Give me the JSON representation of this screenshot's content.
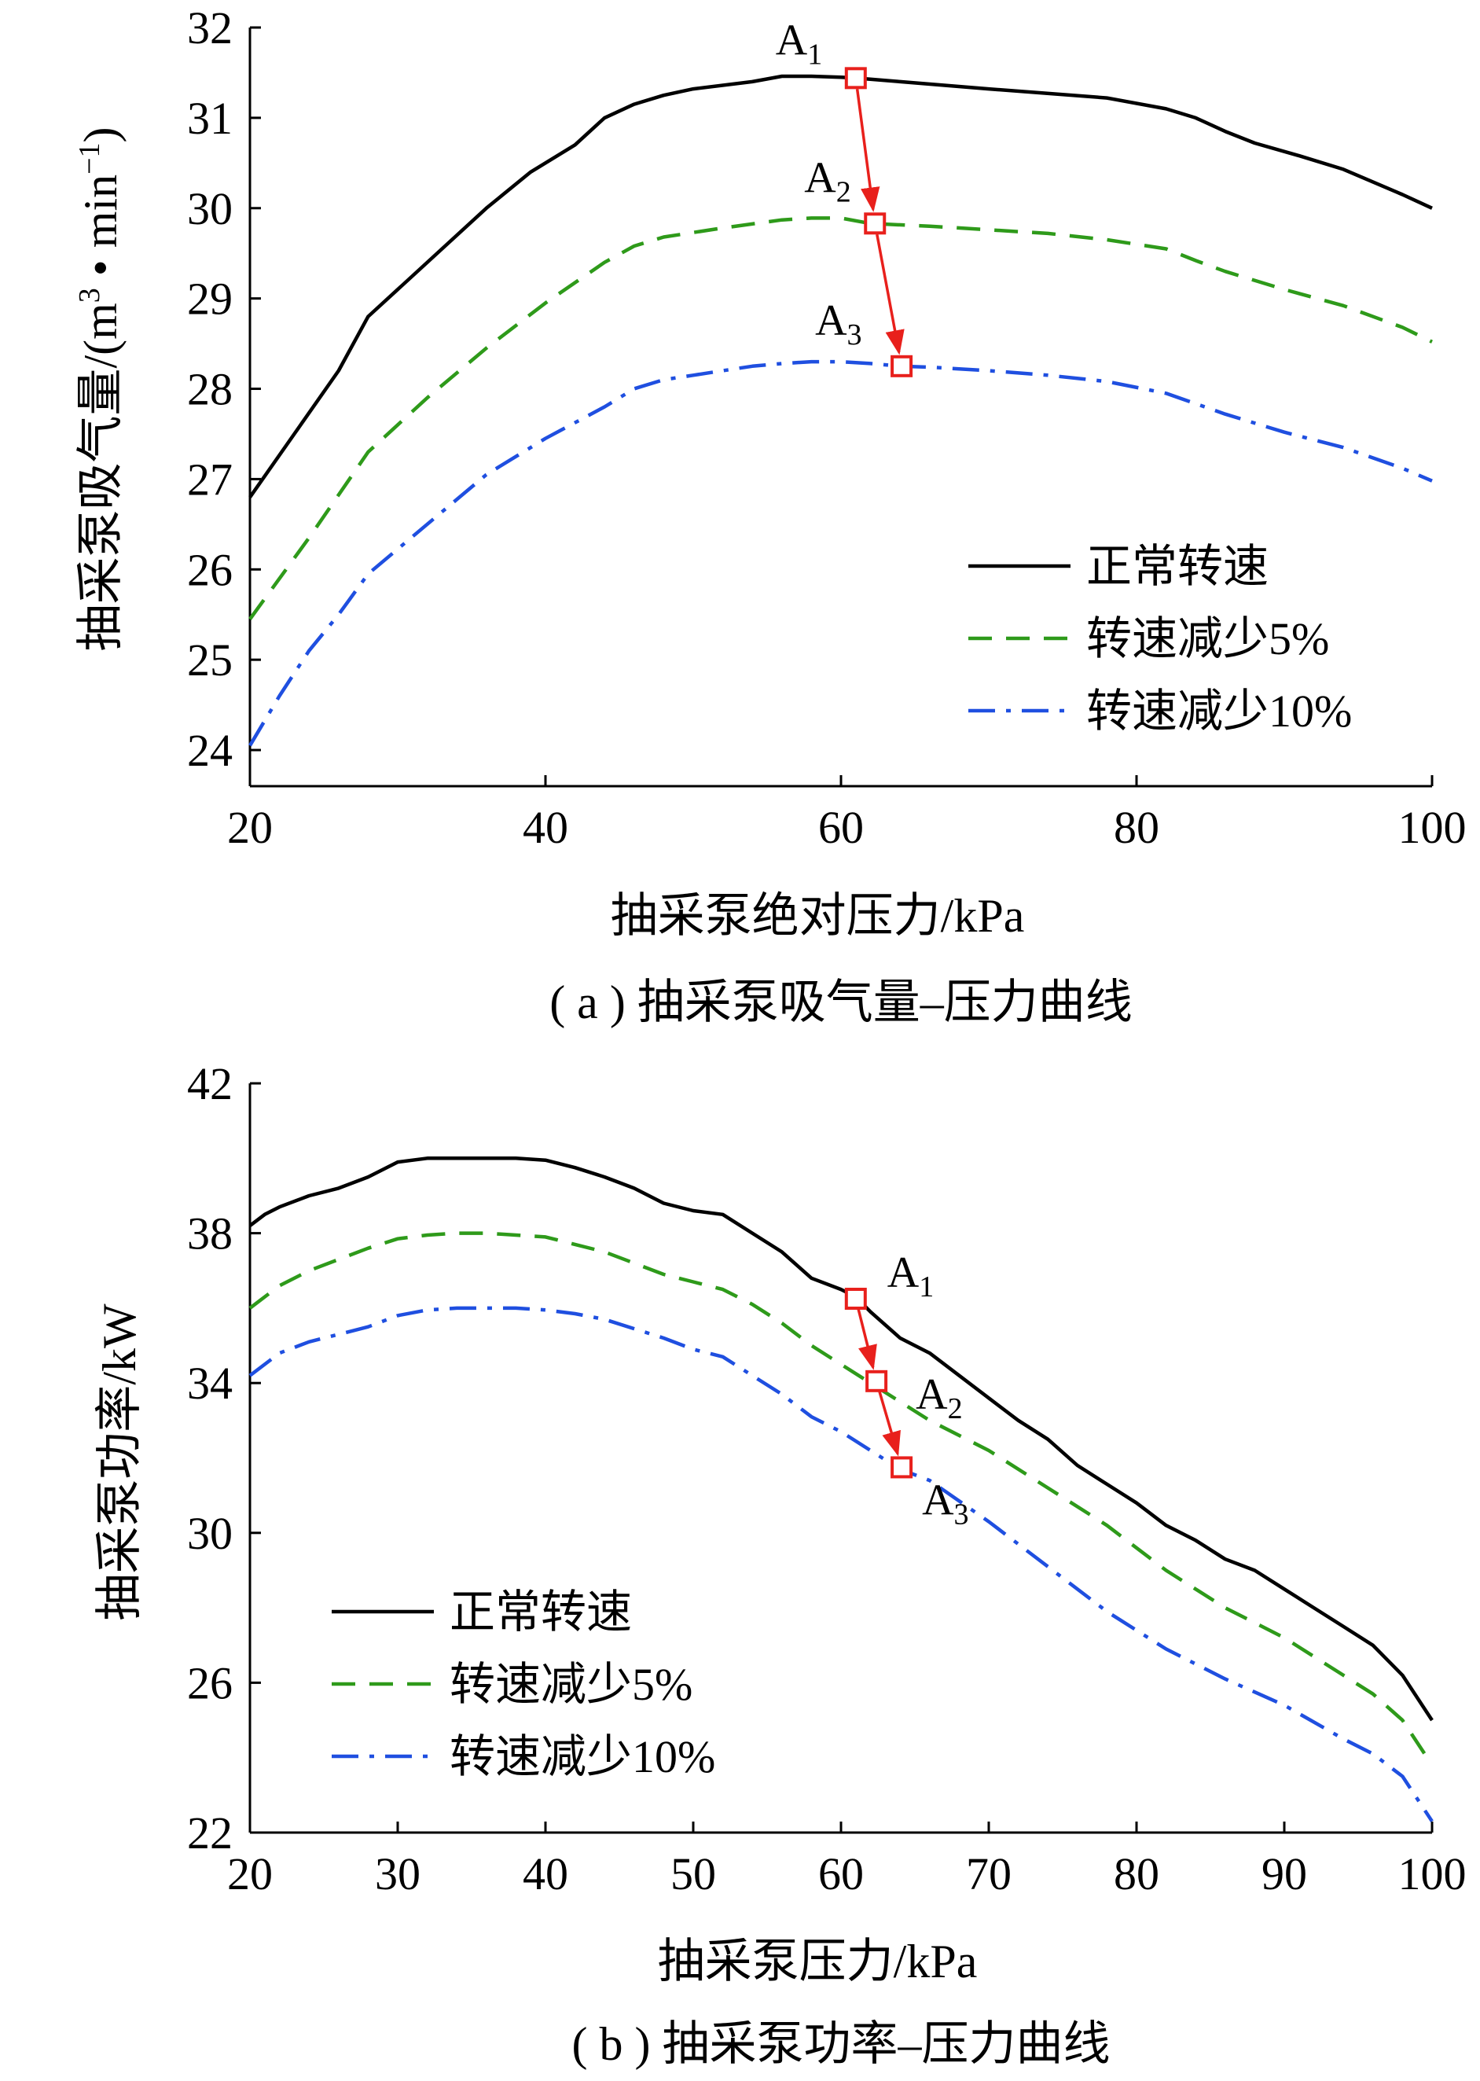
{
  "chart_data": [
    {
      "type": "line",
      "caption": "( a ) 抽采泵吸气量–压力曲线",
      "xlabel": "抽采泵绝对压力/kPa",
      "ylabel_main": "抽采泵吸气量/(m",
      "ylabel_sup1": "3",
      "ylabel_mid": " • min",
      "ylabel_sup2": "−1",
      "ylabel_end": ")",
      "xlim": [
        20,
        100
      ],
      "ylim": [
        23.6,
        32
      ],
      "xticks": [
        20,
        40,
        60,
        80,
        100
      ],
      "yticks": [
        24,
        25,
        26,
        27,
        28,
        29,
        30,
        31,
        32
      ],
      "legend_position": "center-right",
      "series": [
        {
          "name": "正常转速",
          "color": "#000000",
          "dash": "solid",
          "x": [
            20,
            23,
            26,
            28,
            30,
            33,
            36,
            39,
            40,
            42,
            44,
            46,
            48,
            50,
            54,
            56,
            58,
            60,
            61,
            64,
            70,
            78,
            82,
            84,
            86,
            88,
            91,
            94,
            98,
            100
          ],
          "y": [
            26.8,
            27.5,
            28.2,
            28.8,
            29.1,
            29.55,
            30.0,
            30.4,
            30.5,
            30.7,
            31.0,
            31.15,
            31.25,
            31.32,
            31.4,
            31.46,
            31.46,
            31.45,
            31.44,
            31.4,
            31.32,
            31.22,
            31.1,
            31.0,
            30.85,
            30.72,
            30.58,
            30.43,
            30.15,
            30.0
          ]
        },
        {
          "name": "转速减少5%",
          "color": "#2e9a1a",
          "dash": "dashed",
          "x": [
            20,
            24,
            28,
            32,
            36,
            40,
            44,
            46,
            48,
            52,
            56,
            58,
            60,
            62,
            66,
            70,
            74,
            78,
            82,
            84,
            86,
            90,
            94,
            98,
            100
          ],
          "y": [
            25.45,
            26.35,
            27.3,
            27.9,
            28.45,
            28.95,
            29.4,
            29.58,
            29.68,
            29.78,
            29.87,
            29.89,
            29.89,
            29.83,
            29.8,
            29.76,
            29.72,
            29.65,
            29.55,
            29.42,
            29.3,
            29.1,
            28.92,
            28.68,
            28.52
          ]
        },
        {
          "name": "转速减少10%",
          "color": "#1f4fe0",
          "dash": "dashdot",
          "x": [
            20,
            22,
            24,
            26,
            28,
            32,
            36,
            40,
            44,
            46,
            48,
            50,
            52,
            54,
            56,
            58,
            60,
            62,
            64,
            66,
            70,
            74,
            78,
            82,
            86,
            90,
            94,
            98,
            100
          ],
          "y": [
            24.05,
            24.6,
            25.1,
            25.5,
            25.95,
            26.5,
            27.05,
            27.45,
            27.8,
            28.0,
            28.1,
            28.15,
            28.2,
            28.25,
            28.28,
            28.3,
            28.3,
            28.28,
            28.25,
            28.24,
            28.2,
            28.15,
            28.08,
            27.95,
            27.72,
            27.52,
            27.35,
            27.12,
            26.98
          ]
        }
      ],
      "markers": [
        {
          "label": "A",
          "sub": "1",
          "x": 61,
          "y": 31.44
        },
        {
          "label": "A",
          "sub": "2",
          "x": 62.3,
          "y": 29.83
        },
        {
          "label": "A",
          "sub": "3",
          "x": 64.1,
          "y": 28.25
        }
      ],
      "marker_color": "#e8201c"
    },
    {
      "type": "line",
      "caption": "( b ) 抽采泵功率–压力曲线",
      "xlabel": "抽采泵压力/kPa",
      "ylabel": "抽采泵功率/kW",
      "xlim": [
        20,
        100
      ],
      "ylim": [
        22,
        42
      ],
      "xticks": [
        20,
        30,
        40,
        50,
        60,
        70,
        80,
        90,
        100
      ],
      "yticks": [
        22,
        26,
        30,
        34,
        38,
        42
      ],
      "legend_position": "lower-left",
      "series": [
        {
          "name": "正常转速",
          "color": "#000000",
          "dash": "solid",
          "x": [
            20,
            21,
            22,
            24,
            26,
            28,
            30,
            32,
            34,
            36,
            38,
            40,
            42,
            44,
            46,
            48,
            50,
            52,
            54,
            56,
            58,
            60,
            61,
            62,
            64,
            66,
            68,
            70,
            72,
            74,
            76,
            78,
            80,
            82,
            84,
            86,
            88,
            90,
            92,
            94,
            96,
            98,
            100
          ],
          "y": [
            38.2,
            38.5,
            38.7,
            39.0,
            39.2,
            39.5,
            39.9,
            40.0,
            40.0,
            40.0,
            40.0,
            39.95,
            39.75,
            39.5,
            39.2,
            38.8,
            38.6,
            38.5,
            38.0,
            37.5,
            36.8,
            36.5,
            36.3,
            35.9,
            35.2,
            34.8,
            34.2,
            33.6,
            33.0,
            32.5,
            31.8,
            31.3,
            30.8,
            30.2,
            29.8,
            29.3,
            29.0,
            28.5,
            28.0,
            27.5,
            27.0,
            26.2,
            25.0
          ]
        },
        {
          "name": "转速减少5%",
          "color": "#2e9a1a",
          "dash": "dashed",
          "x": [
            20,
            22,
            24,
            26,
            28,
            30,
            32,
            34,
            36,
            38,
            40,
            42,
            44,
            46,
            48,
            50,
            52,
            54,
            56,
            58,
            60,
            62,
            64,
            66,
            70,
            74,
            78,
            82,
            86,
            90,
            94,
            96,
            98,
            100
          ],
          "y": [
            36.0,
            36.6,
            37.0,
            37.3,
            37.6,
            37.85,
            37.95,
            38.0,
            38.0,
            37.95,
            37.9,
            37.7,
            37.5,
            37.2,
            36.9,
            36.7,
            36.5,
            36.1,
            35.6,
            35.0,
            34.5,
            34.0,
            33.5,
            33.0,
            32.2,
            31.2,
            30.2,
            29.0,
            28.0,
            27.2,
            26.2,
            25.7,
            25.0,
            23.8
          ]
        },
        {
          "name": "转速减少10%",
          "color": "#1f4fe0",
          "dash": "dashdot",
          "x": [
            20,
            22,
            24,
            26,
            28,
            30,
            32,
            34,
            36,
            38,
            40,
            42,
            44,
            46,
            48,
            50,
            52,
            54,
            56,
            58,
            60,
            62,
            64,
            66,
            70,
            74,
            78,
            82,
            86,
            90,
            94,
            96,
            98,
            100
          ],
          "y": [
            34.2,
            34.8,
            35.1,
            35.3,
            35.5,
            35.8,
            35.95,
            36.0,
            36.0,
            36.0,
            35.95,
            35.85,
            35.7,
            35.45,
            35.2,
            34.9,
            34.7,
            34.2,
            33.7,
            33.1,
            32.7,
            32.2,
            31.7,
            31.4,
            30.3,
            29.1,
            27.9,
            26.9,
            26.1,
            25.4,
            24.5,
            24.1,
            23.5,
            22.3
          ]
        }
      ],
      "markers": [
        {
          "label": "A",
          "sub": "1",
          "x": 61,
          "y": 36.25
        },
        {
          "label": "A",
          "sub": "2",
          "x": 62.4,
          "y": 34.05
        },
        {
          "label": "A",
          "sub": "3",
          "x": 64.1,
          "y": 31.75
        }
      ],
      "marker_color": "#e8201c"
    }
  ]
}
